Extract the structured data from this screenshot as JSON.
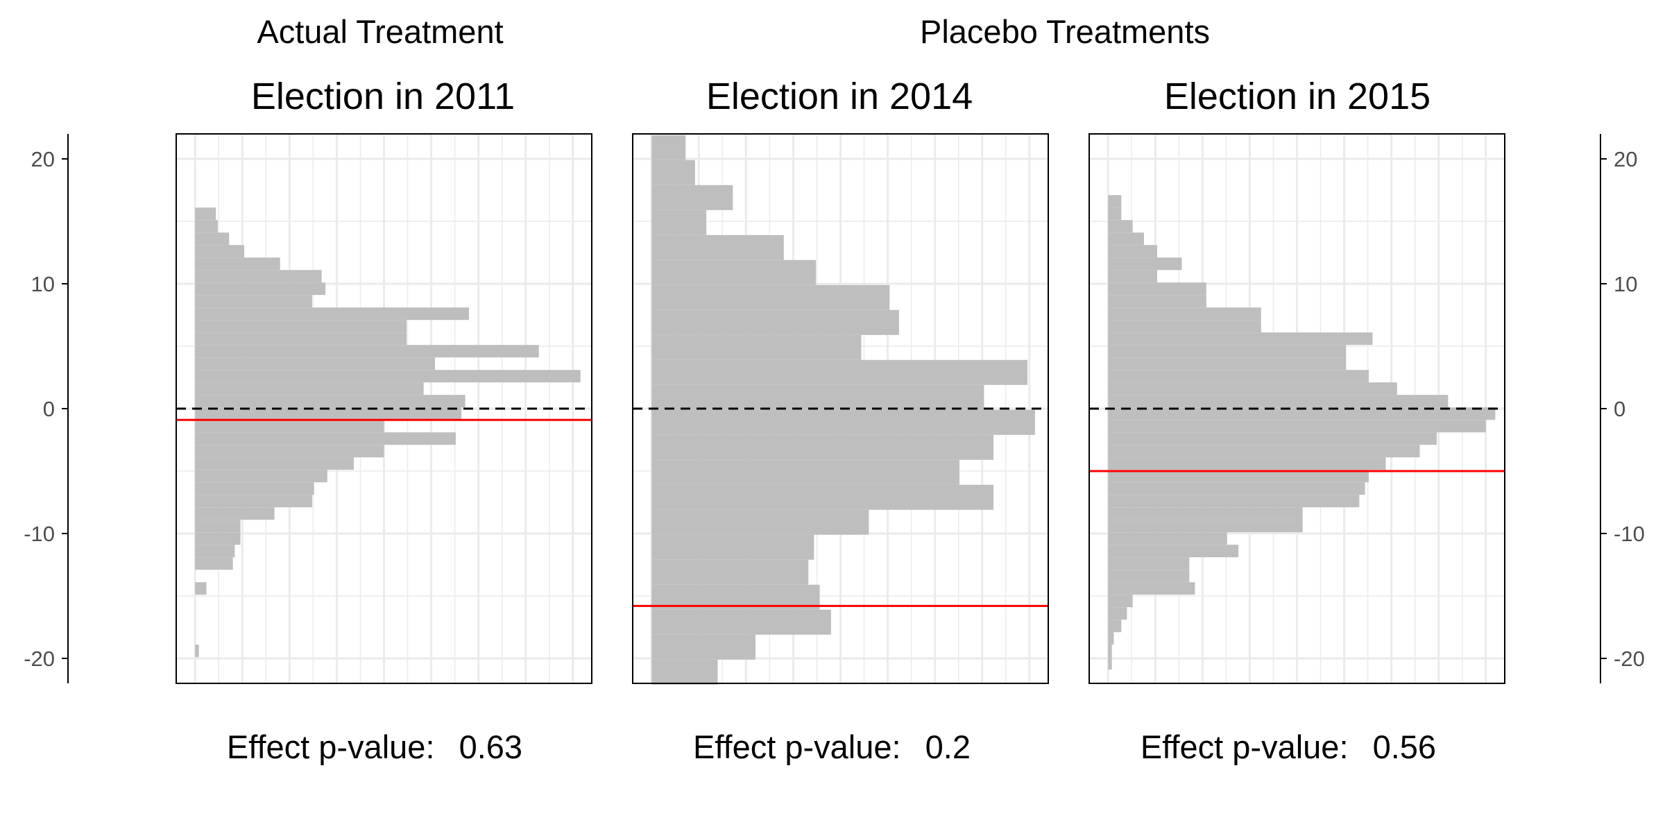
{
  "headers": {
    "actual": "Actual Treatment",
    "placebo": "Placebo Treatments"
  },
  "colors": {
    "bars": "#bebebe",
    "grid": "#ebebeb",
    "effect_line": "#ff0000",
    "zero_line": "#000000",
    "axis": "#000000",
    "tick_text": "#4d4d4d"
  },
  "chart_data": [
    {
      "type": "bar",
      "orientation": "horizontal-histogram",
      "title": "Election in 2011",
      "footer_label": "Effect p-value:",
      "footer_value": "0.63",
      "ylim": [
        -22,
        22
      ],
      "yticks": [
        -20,
        -10,
        0,
        10,
        20
      ],
      "xlim": [
        0,
        22
      ],
      "bin_width": 1,
      "bins": [
        {
          "y": 15.6,
          "count": 1.1
        },
        {
          "y": 14.6,
          "count": 1.2
        },
        {
          "y": 13.6,
          "count": 1.8
        },
        {
          "y": 12.6,
          "count": 2.6
        },
        {
          "y": 11.6,
          "count": 4.5
        },
        {
          "y": 10.6,
          "count": 6.7
        },
        {
          "y": 9.6,
          "count": 6.9
        },
        {
          "y": 8.6,
          "count": 6.2
        },
        {
          "y": 7.6,
          "count": 14.5
        },
        {
          "y": 6.6,
          "count": 11.2
        },
        {
          "y": 5.6,
          "count": 11.2
        },
        {
          "y": 4.6,
          "count": 18.2
        },
        {
          "y": 3.6,
          "count": 12.7
        },
        {
          "y": 2.6,
          "count": 20.4
        },
        {
          "y": 1.6,
          "count": 12.1
        },
        {
          "y": 0.6,
          "count": 14.3
        },
        {
          "y": -0.4,
          "count": 14.1
        },
        {
          "y": -1.4,
          "count": 10.0
        },
        {
          "y": -2.4,
          "count": 13.8
        },
        {
          "y": -3.4,
          "count": 10.0
        },
        {
          "y": -4.4,
          "count": 8.4
        },
        {
          "y": -5.4,
          "count": 7.0
        },
        {
          "y": -6.4,
          "count": 6.3
        },
        {
          "y": -7.4,
          "count": 6.2
        },
        {
          "y": -8.4,
          "count": 4.2
        },
        {
          "y": -9.4,
          "count": 2.4
        },
        {
          "y": -10.4,
          "count": 2.4
        },
        {
          "y": -11.4,
          "count": 2.1
        },
        {
          "y": -12.4,
          "count": 2.0
        },
        {
          "y": -14.4,
          "count": 0.6
        },
        {
          "y": -19.4,
          "count": 0.2
        }
      ],
      "zero_reference": 0,
      "effect_estimate": -0.9
    },
    {
      "type": "bar",
      "orientation": "horizontal-histogram",
      "title": "Election in 2014",
      "footer_label": "Effect p-value:",
      "footer_value": "0.2",
      "ylim": [
        -22,
        22
      ],
      "yticks": [
        -20,
        -10,
        0,
        10,
        20
      ],
      "xlim": [
        0,
        22
      ],
      "bin_width": 2,
      "bins": [
        {
          "y": 20.9,
          "count": 1.8
        },
        {
          "y": 18.9,
          "count": 2.3
        },
        {
          "y": 16.9,
          "count": 4.3
        },
        {
          "y": 14.9,
          "count": 2.9
        },
        {
          "y": 12.9,
          "count": 7.0
        },
        {
          "y": 10.9,
          "count": 8.7
        },
        {
          "y": 8.9,
          "count": 12.6
        },
        {
          "y": 6.9,
          "count": 13.1
        },
        {
          "y": 4.9,
          "count": 11.1
        },
        {
          "y": 2.9,
          "count": 19.9
        },
        {
          "y": 0.9,
          "count": 17.6
        },
        {
          "y": -1.1,
          "count": 20.3
        },
        {
          "y": -3.1,
          "count": 18.1
        },
        {
          "y": -5.1,
          "count": 16.3
        },
        {
          "y": -7.1,
          "count": 18.1
        },
        {
          "y": -9.1,
          "count": 11.5
        },
        {
          "y": -11.1,
          "count": 8.6
        },
        {
          "y": -13.1,
          "count": 8.3
        },
        {
          "y": -15.1,
          "count": 8.9
        },
        {
          "y": -17.1,
          "count": 9.5
        },
        {
          "y": -19.1,
          "count": 5.5
        },
        {
          "y": -21.1,
          "count": 3.5
        }
      ],
      "zero_reference": 0,
      "effect_estimate": -15.8
    },
    {
      "type": "bar",
      "orientation": "horizontal-histogram",
      "title": "Election in 2015",
      "footer_label": "Effect p-value:",
      "footer_value": "0.56",
      "ylim": [
        -22,
        22
      ],
      "yticks": [
        -20,
        -10,
        0,
        10,
        20
      ],
      "xlim": [
        0,
        22
      ],
      "bin_width": 1,
      "bins": [
        {
          "y": 16.6,
          "count": 0.7
        },
        {
          "y": 15.6,
          "count": 0.7
        },
        {
          "y": 14.6,
          "count": 1.3
        },
        {
          "y": 13.6,
          "count": 1.9
        },
        {
          "y": 12.6,
          "count": 2.6
        },
        {
          "y": 11.6,
          "count": 3.9
        },
        {
          "y": 10.6,
          "count": 2.6
        },
        {
          "y": 9.6,
          "count": 5.2
        },
        {
          "y": 8.6,
          "count": 5.2
        },
        {
          "y": 7.6,
          "count": 8.1
        },
        {
          "y": 6.6,
          "count": 8.1
        },
        {
          "y": 5.6,
          "count": 14.0
        },
        {
          "y": 4.6,
          "count": 12.6
        },
        {
          "y": 3.6,
          "count": 12.6
        },
        {
          "y": 2.6,
          "count": 13.8
        },
        {
          "y": 1.6,
          "count": 15.3
        },
        {
          "y": 0.6,
          "count": 18.0
        },
        {
          "y": -0.4,
          "count": 20.5
        },
        {
          "y": -1.4,
          "count": 20.0
        },
        {
          "y": -2.4,
          "count": 17.4
        },
        {
          "y": -3.4,
          "count": 16.5
        },
        {
          "y": -4.4,
          "count": 14.7
        },
        {
          "y": -5.4,
          "count": 13.8
        },
        {
          "y": -6.4,
          "count": 13.6
        },
        {
          "y": -7.4,
          "count": 13.3
        },
        {
          "y": -8.4,
          "count": 10.3
        },
        {
          "y": -9.4,
          "count": 10.3
        },
        {
          "y": -10.4,
          "count": 6.3
        },
        {
          "y": -11.4,
          "count": 6.9
        },
        {
          "y": -12.4,
          "count": 4.3
        },
        {
          "y": -13.4,
          "count": 4.3
        },
        {
          "y": -14.4,
          "count": 4.6
        },
        {
          "y": -15.4,
          "count": 1.3
        },
        {
          "y": -16.4,
          "count": 1.0
        },
        {
          "y": -17.4,
          "count": 0.7
        },
        {
          "y": -18.4,
          "count": 0.3
        },
        {
          "y": -19.4,
          "count": 0.2
        },
        {
          "y": -20.4,
          "count": 0.2
        }
      ],
      "zero_reference": 0,
      "effect_estimate": -5.0
    }
  ],
  "side_axes": {
    "ylim": [
      -22,
      22
    ],
    "yticks": [
      -20,
      -10,
      0,
      10,
      20
    ]
  }
}
